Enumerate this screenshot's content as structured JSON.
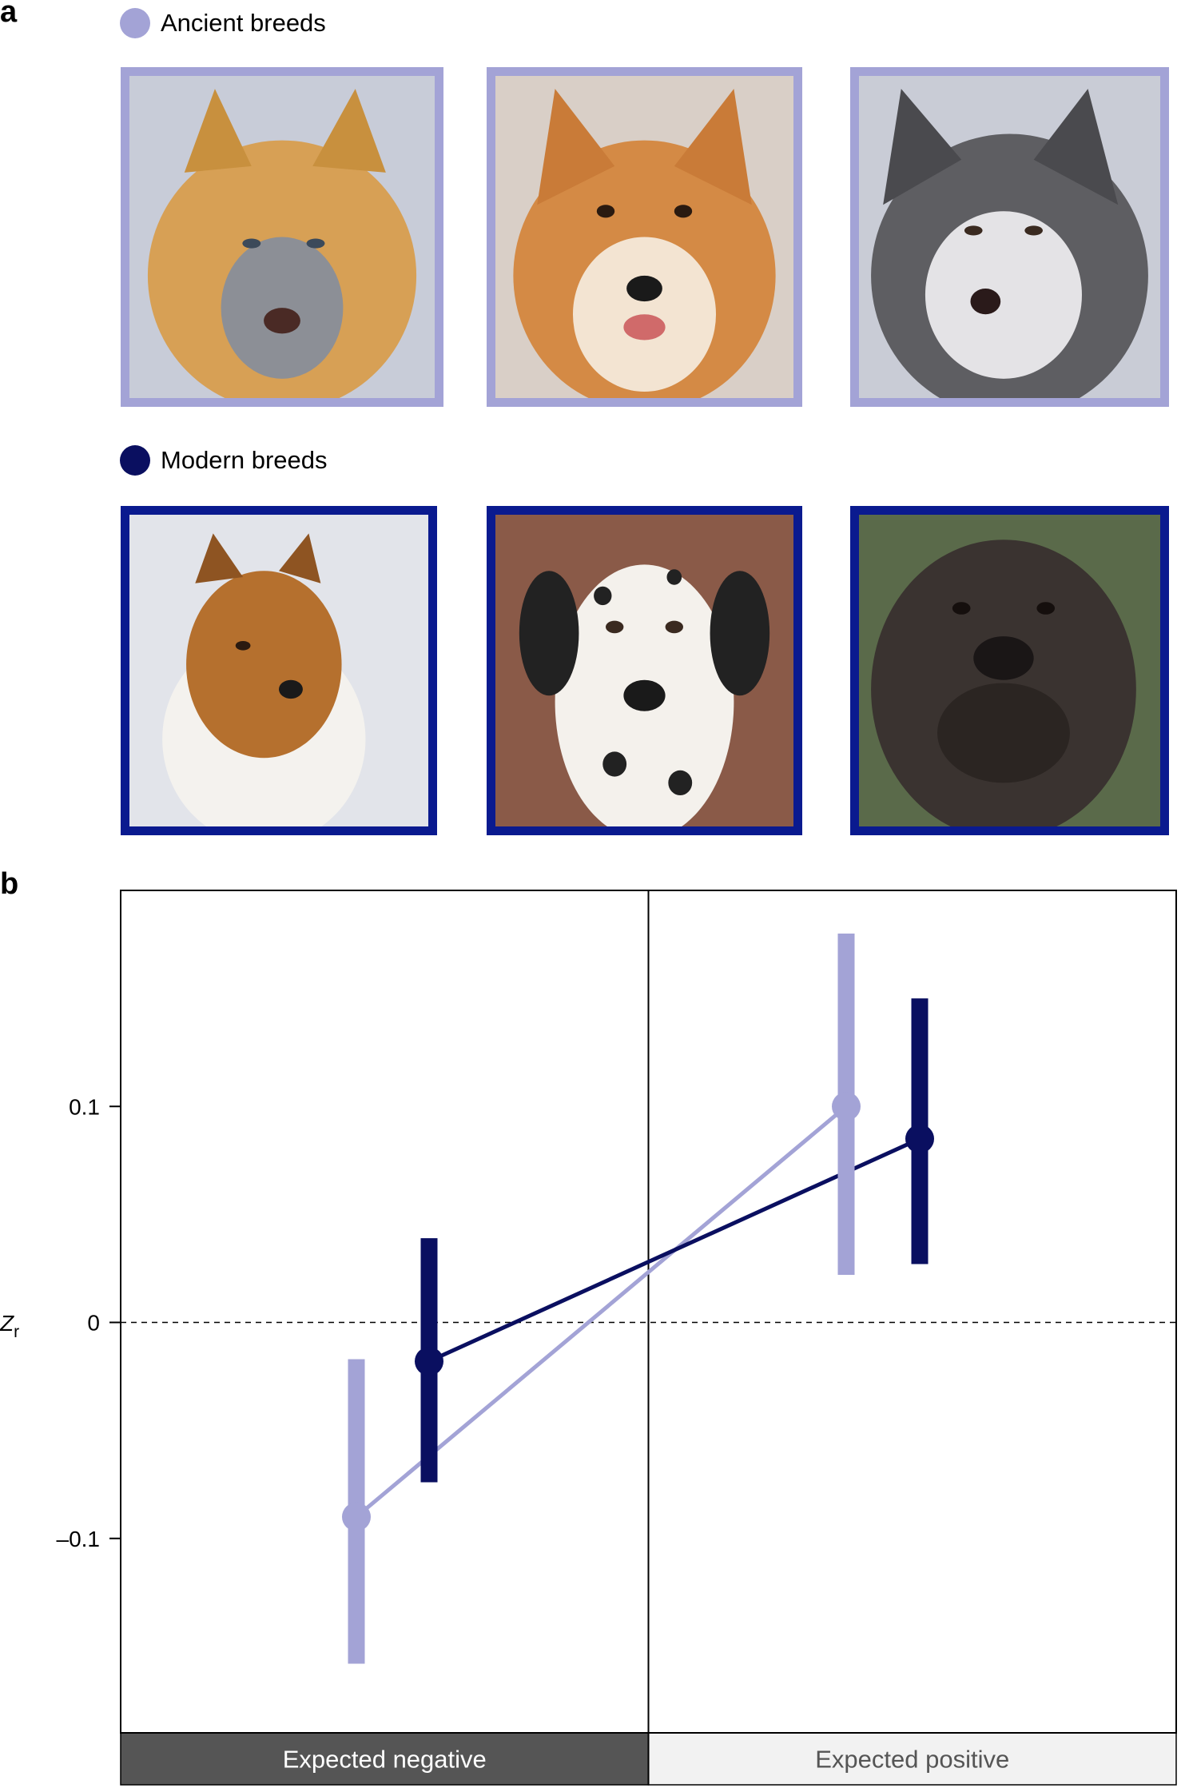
{
  "panel_a": {
    "label": "a",
    "ancient_legend": "Ancient breeds",
    "modern_legend": "Modern breeds",
    "ancient_color": "#a3a3d6",
    "modern_color": "#0a1a8f"
  },
  "panel_b": {
    "label": "b"
  },
  "chart_data": {
    "type": "scatter",
    "categories": [
      "Expected negative",
      "Expected positive"
    ],
    "ylabel": "Z",
    "ylabel_subscript": "r",
    "ylim": [
      -0.19,
      0.2
    ],
    "yticks": [
      {
        "value": 0.1,
        "label": "0.1"
      },
      {
        "value": 0,
        "label": "0"
      },
      {
        "value": -0.1,
        "label": "–0.1"
      }
    ],
    "reference_line": {
      "value": 0,
      "style": "dashed"
    },
    "category_colors": [
      "#555555",
      "#f2f2f2"
    ],
    "category_text_colors": [
      "#ffffff",
      "#555555"
    ],
    "series": [
      {
        "color": "#a3a3d6",
        "values": [
          -0.09,
          0.1
        ],
        "ci_low": [
          -0.158,
          0.022
        ],
        "ci_high": [
          -0.017,
          0.18
        ]
      },
      {
        "color": "#0a0f60",
        "values": [
          -0.018,
          0.085
        ],
        "ci_low": [
          -0.074,
          0.027
        ],
        "ci_high": [
          0.039,
          0.15
        ]
      }
    ]
  }
}
